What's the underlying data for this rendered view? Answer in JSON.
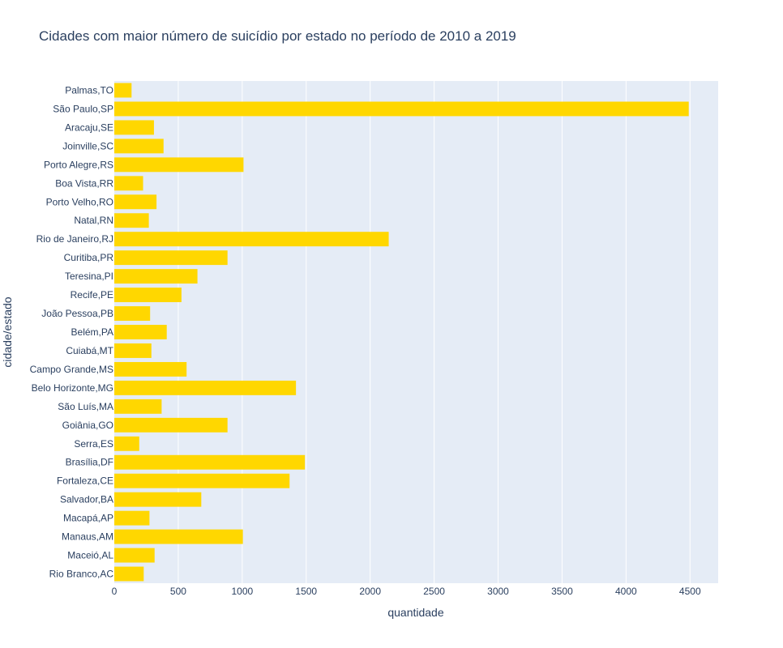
{
  "chart_data": {
    "type": "bar",
    "orientation": "horizontal",
    "title": "Cidades com maior número de suicídio por estado no período de 2010 a 2019",
    "xlabel": "quantidade",
    "ylabel": "cidade/estado",
    "xlim": [
      0,
      4720
    ],
    "x_ticks": [
      0,
      500,
      1000,
      1500,
      2000,
      2500,
      3000,
      3500,
      4000,
      4500
    ],
    "grid": true,
    "bar_color": "#ffd700",
    "plot_bg": "#e5ecf6",
    "categories": [
      "Palmas,TO",
      "São Paulo,SP",
      "Aracaju,SE",
      "Joinville,SC",
      "Porto Alegre,RS",
      "Boa Vista,RR",
      "Porto Velho,RO",
      "Natal,RN",
      "Rio de Janeiro,RJ",
      "Curitiba,PR",
      "Teresina,PI",
      "Recife,PE",
      "João Pessoa,PB",
      "Belém,PA",
      "Cuiabá,MT",
      "Campo Grande,MS",
      "Belo Horizonte,MG",
      "São Luís,MA",
      "Goiânia,GO",
      "Serra,ES",
      "Brasília,DF",
      "Fortaleza,CE",
      "Salvador,BA",
      "Macapá,AP",
      "Manaus,AM",
      "Maceió,AL",
      "Rio Branco,AC"
    ],
    "values": [
      135,
      4490,
      310,
      385,
      1010,
      225,
      330,
      270,
      2145,
      885,
      650,
      525,
      280,
      410,
      290,
      565,
      1420,
      370,
      885,
      195,
      1490,
      1370,
      680,
      275,
      1005,
      315,
      230
    ]
  }
}
